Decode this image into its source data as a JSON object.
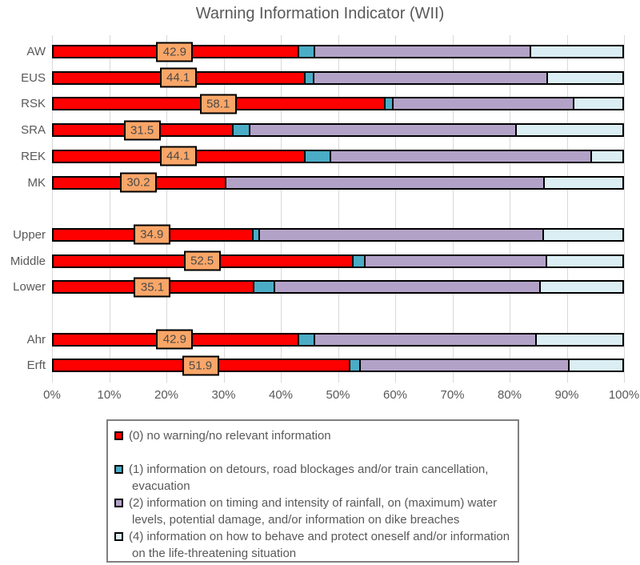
{
  "chart_data": {
    "type": "bar",
    "orientation": "horizontal",
    "stacked": true,
    "title": "Warning Information Indicator (WII)",
    "categories": [
      "AW",
      "EUS",
      "RSK",
      "SRA",
      "REK",
      "MK",
      "Upper",
      "Middle",
      "Lower",
      "Ahr",
      "Erft"
    ],
    "groups": [
      [
        "AW",
        "EUS",
        "RSK",
        "SRA",
        "REK",
        "MK"
      ],
      [
        "Upper",
        "Middle",
        "Lower"
      ],
      [
        "Ahr",
        "Erft"
      ]
    ],
    "series": [
      {
        "name": "(0) no warning/no relevant information",
        "color": "#ff0000",
        "values": [
          42.9,
          44.1,
          58.1,
          31.5,
          44.1,
          30.2,
          34.9,
          52.5,
          35.1,
          42.9,
          51.9
        ]
      },
      {
        "name": "(1) information on detours, road blockages and/or train cancellation, evacuation",
        "color": "#4bacc6",
        "values": [
          2.9,
          1.5,
          1.4,
          2.9,
          4.4,
          0,
          1.2,
          2.0,
          3.7,
          2.9,
          1.8
        ]
      },
      {
        "name": "(2) information on timing and intensity of rainfall, on (maximum) water levels, potential damage, and/or information on dike breaches",
        "color": "#b3a2c7",
        "values": [
          37.7,
          40.8,
          31.5,
          46.6,
          45.6,
          55.7,
          49.6,
          31.8,
          46.4,
          38.7,
          36.5
        ]
      },
      {
        "name": "(4) information on how to behave and protect oneself and/or information on the life-threatening situation",
        "color": "#daeef3",
        "values": [
          16.5,
          13.6,
          9.0,
          19.0,
          5.9,
          14.1,
          14.3,
          13.7,
          14.8,
          15.5,
          9.8
        ]
      }
    ],
    "data_labels": [
      "42.9",
      "44.1",
      "58.1",
      "31.5",
      "44.1",
      "30.2",
      "34.9",
      "52.5",
      "35.1",
      "42.9",
      "51.9"
    ],
    "data_label_series": 0,
    "xlabel": "",
    "ylabel": "",
    "xlim": [
      0,
      100
    ],
    "x_ticks": [
      "0%",
      "10%",
      "20%",
      "30%",
      "40%",
      "50%",
      "60%",
      "70%",
      "80%",
      "90%",
      "100%"
    ],
    "grid": true,
    "legend_position": "bottom"
  },
  "legend": {
    "items": [
      {
        "label": "(0) no warning/no relevant information",
        "color": "#ff0000"
      },
      {
        "label": "(1) information on detours, road blockages and/or train cancellation, evacuation",
        "color": "#4bacc6"
      },
      {
        "label": "(2) information on timing and intensity of rainfall, on (maximum) water levels, potential damage, and/or information on dike breaches",
        "color": "#b3a2c7"
      },
      {
        "label": "(4) information on how to behave and protect oneself and/or information on the life-threatening situation",
        "color": "#daeef3"
      }
    ]
  },
  "colors": {
    "series_0": "#ff0000",
    "series_1": "#4bacc6",
    "series_2": "#b3a2c7",
    "series_3": "#daeef3",
    "data_label_fill": "#f9a668",
    "bar_border": "#000000",
    "text": "#595959",
    "gridline": "#d9d9d9",
    "legend_border": "#7f7f7f"
  }
}
